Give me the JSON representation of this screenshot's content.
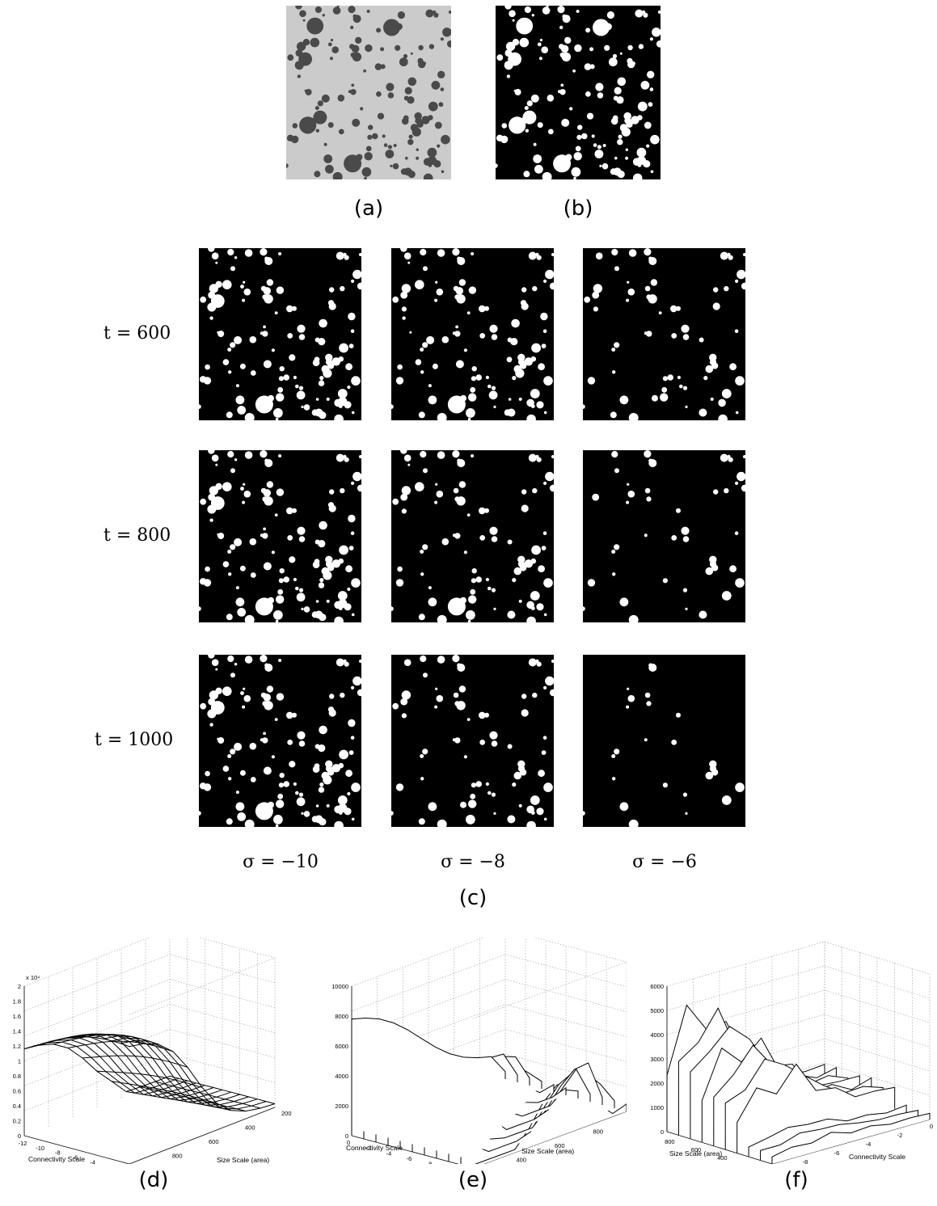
{
  "labels": {
    "a": "(a)",
    "b": "(b)",
    "c": "(c)",
    "d": "(d)",
    "e": "(e)",
    "f": "(f)"
  },
  "row_labels": [
    "t = 600",
    "t = 800",
    "t = 1000"
  ],
  "col_labels": [
    "σ = −10",
    "σ = −8",
    "σ = −6"
  ],
  "colors": {
    "background": "#ffffff",
    "image_black": "#000000",
    "blob_white": "#ffffff",
    "gray_bg": "#c9c9c9",
    "gray_blob": "#4a4a4a"
  },
  "chart_data": [
    {
      "type": "surface",
      "panel": "d",
      "exponent_label": "x 10⁴",
      "zlim": [
        0,
        2
      ],
      "z_ticks": [
        "0",
        "0.2",
        "0.4",
        "0.6",
        "0.8",
        "1",
        "1.2",
        "1.4",
        "1.6",
        "1.8",
        "2"
      ],
      "x_ticks": [
        "-12",
        "-10",
        "-8",
        "-6",
        "-4",
        "-2",
        "0"
      ],
      "y_ticks": [
        "1000",
        "800",
        "600",
        "400",
        "200"
      ],
      "xlabel": "Connectivity Scale",
      "ylabel": "Size Scale (area)"
    },
    {
      "type": "line3d",
      "panel": "e",
      "zlim": [
        0,
        10000
      ],
      "z_ticks": [
        "0",
        "2000",
        "4000",
        "6000",
        "8000",
        "10000"
      ],
      "x_ticks": [
        "0",
        "-2",
        "-4",
        "-6",
        "-8",
        "-10",
        "-12"
      ],
      "y_ticks": [
        "200",
        "400",
        "600",
        "800",
        "1000"
      ],
      "xlabel": "Connectivity Scale",
      "ylabel": "Size Scale (area)"
    },
    {
      "type": "line3d",
      "panel": "f",
      "zlim": [
        0,
        6000
      ],
      "z_ticks": [
        "0",
        "1000",
        "2000",
        "3000",
        "4000",
        "5000",
        "6000"
      ],
      "x_ticks": [
        "-10",
        "-8",
        "-6",
        "-4",
        "-2",
        "0"
      ],
      "y_ticks": [
        "800",
        "600",
        "400",
        "200"
      ],
      "xlabel": "Connectivity Scale",
      "ylabel": "Size Scale (area)"
    }
  ]
}
